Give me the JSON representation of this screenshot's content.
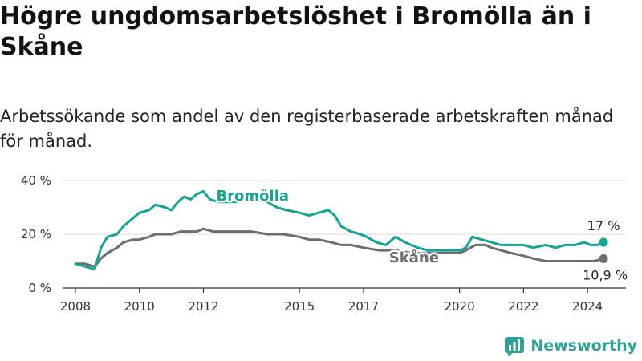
{
  "title": "Högre ungdomsarbetslöshet i Bromölla än i Skåne",
  "subtitle": "Arbetssökande som andel av den registerbaserade arbetskraften månad för månad.",
  "brand": "Newsworthy",
  "colors": {
    "bromolla": "#16a395",
    "skane": "#6d6d70",
    "grid": "#dcdcdc",
    "axis": "#333333"
  },
  "chart_data": {
    "type": "line",
    "title": "Högre ungdomsarbetslöshet i Bromölla än i Skåne",
    "xlabel": "",
    "ylabel": "",
    "xlim": [
      2007.6,
      2025.2
    ],
    "ylim": [
      0,
      40
    ],
    "y_ticks": [
      0,
      20,
      40
    ],
    "y_tick_labels": [
      "0 %",
      "20 %",
      "40 %"
    ],
    "x_ticks": [
      2008,
      2010,
      2012,
      2015,
      2017,
      2020,
      2022,
      2024
    ],
    "x_tick_labels": [
      "2008",
      "2010",
      "2012",
      "2015",
      "2017",
      "2020",
      "2022",
      "2024"
    ],
    "grid": true,
    "series": [
      {
        "name": "Bromölla",
        "label": "Bromölla",
        "end_label": "17 %",
        "x": [
          2008.0,
          2008.3,
          2008.6,
          2008.8,
          2009.0,
          2009.3,
          2009.5,
          2009.8,
          2010.0,
          2010.3,
          2010.5,
          2010.8,
          2011.0,
          2011.2,
          2011.4,
          2011.6,
          2011.8,
          2012.0,
          2012.2,
          2012.5,
          2013.0,
          2013.5,
          2014.0,
          2014.3,
          2014.6,
          2015.0,
          2015.3,
          2015.6,
          2015.9,
          2016.1,
          2016.3,
          2016.6,
          2016.9,
          2017.1,
          2017.4,
          2017.7,
          2018.0,
          2018.3,
          2018.7,
          2019.0,
          2019.5,
          2020.0,
          2020.2,
          2020.4,
          2020.7,
          2021.0,
          2021.3,
          2021.6,
          2022.0,
          2022.3,
          2022.7,
          2023.0,
          2023.3,
          2023.6,
          2023.9,
          2024.1,
          2024.3,
          2024.5
        ],
        "values": [
          9,
          8,
          7,
          15,
          19,
          20,
          23,
          26,
          28,
          29,
          31,
          30,
          29,
          32,
          34,
          33,
          35,
          36,
          33,
          32,
          32,
          33,
          32,
          30,
          29,
          28,
          27,
          28,
          29,
          27,
          23,
          21,
          20,
          19,
          17,
          16,
          19,
          17,
          15,
          14,
          14,
          14,
          15,
          19,
          18,
          17,
          16,
          16,
          16,
          15,
          16,
          15,
          16,
          16,
          17,
          16,
          16,
          17
        ]
      },
      {
        "name": "Skåne",
        "label": "Skåne",
        "end_label": "10,9 %",
        "x": [
          2008.0,
          2008.3,
          2008.6,
          2008.8,
          2009.0,
          2009.3,
          2009.5,
          2009.8,
          2010.0,
          2010.3,
          2010.5,
          2010.8,
          2011.0,
          2011.3,
          2011.6,
          2011.8,
          2012.0,
          2012.3,
          2012.6,
          2013.0,
          2013.5,
          2014.0,
          2014.5,
          2015.0,
          2015.3,
          2015.6,
          2016.0,
          2016.3,
          2016.6,
          2017.0,
          2017.5,
          2018.0,
          2018.5,
          2019.0,
          2019.5,
          2020.0,
          2020.2,
          2020.5,
          2020.8,
          2021.0,
          2021.3,
          2021.6,
          2022.0,
          2022.3,
          2022.7,
          2023.0,
          2023.5,
          2024.0,
          2024.2,
          2024.5
        ],
        "values": [
          9,
          9,
          8,
          11,
          13,
          15,
          17,
          18,
          18,
          19,
          20,
          20,
          20,
          21,
          21,
          21,
          22,
          21,
          21,
          21,
          21,
          20,
          20,
          19,
          18,
          18,
          17,
          16,
          16,
          15,
          14,
          14,
          13,
          13,
          13,
          13,
          14,
          16,
          16,
          15,
          14,
          13,
          12,
          11,
          10,
          10,
          10,
          10,
          10,
          10.9
        ]
      }
    ]
  }
}
